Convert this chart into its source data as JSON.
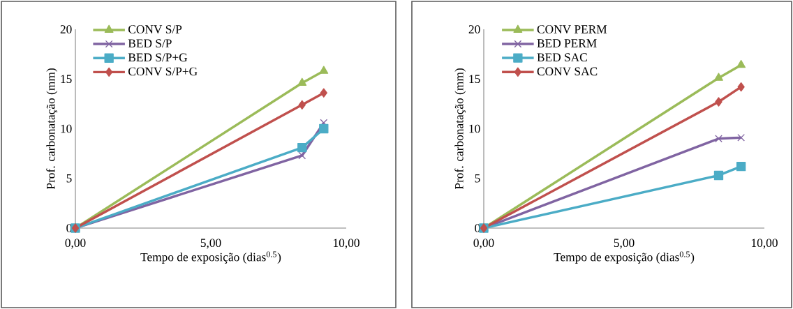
{
  "chart_data": [
    {
      "type": "line",
      "x": [
        0,
        8.37,
        9.17
      ],
      "xlabel": "Tempo de exposição (dias$^{0.5}$)",
      "ylabel": "Prof. carbonatação (mm)",
      "xlim": [
        0,
        10
      ],
      "ylim": [
        0,
        20
      ],
      "xticks": [
        {
          "value": 0,
          "label": "0,00"
        },
        {
          "value": 5,
          "label": "5,00"
        },
        {
          "value": 10,
          "label": "10,00"
        }
      ],
      "yticks": [
        0,
        5,
        10,
        15,
        20
      ],
      "legend": "top left",
      "grid": false,
      "series": [
        {
          "name": "CONV S/P",
          "color": "#9bbb59",
          "marker": "triangle",
          "values": [
            0,
            14.6,
            15.8
          ]
        },
        {
          "name": "BED S/P",
          "color": "#8064a2",
          "marker": "cross",
          "values": [
            0,
            7.3,
            10.6
          ]
        },
        {
          "name": "BED S/P+G",
          "color": "#4bacc6",
          "marker": "square",
          "values": [
            0,
            8.1,
            10.0
          ]
        },
        {
          "name": "CONV S/P+G",
          "color": "#c0504d",
          "marker": "diamond",
          "values": [
            0,
            12.4,
            13.6
          ]
        }
      ]
    },
    {
      "type": "line",
      "x": [
        0,
        8.37,
        9.17
      ],
      "xlabel": "Tempo de exposição (dias$^{0.5}$)",
      "ylabel": "Prof. carbonatação (mm)",
      "xlim": [
        0,
        10
      ],
      "ylim": [
        0,
        20
      ],
      "xticks": [
        {
          "value": 0,
          "label": "0,00"
        },
        {
          "value": 5,
          "label": "5,00"
        },
        {
          "value": 10,
          "label": "10,00"
        }
      ],
      "yticks": [
        0,
        5,
        10,
        15,
        20
      ],
      "legend": "top left",
      "grid": false,
      "series": [
        {
          "name": "CONV PERM",
          "color": "#9bbb59",
          "marker": "triangle",
          "values": [
            0,
            15.1,
            16.4
          ]
        },
        {
          "name": "BED PERM",
          "color": "#8064a2",
          "marker": "cross",
          "values": [
            0,
            9.0,
            9.1
          ]
        },
        {
          "name": "BED SAC",
          "color": "#4bacc6",
          "marker": "square",
          "values": [
            0,
            5.3,
            6.2
          ]
        },
        {
          "name": "CONV SAC",
          "color": "#c0504d",
          "marker": "diamond",
          "values": [
            0,
            12.7,
            14.2
          ]
        }
      ]
    }
  ]
}
